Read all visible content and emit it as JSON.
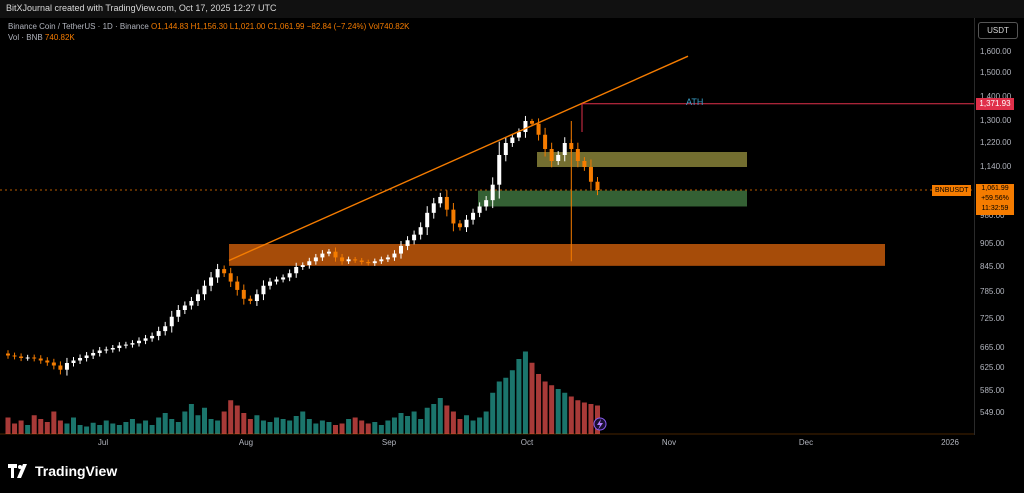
{
  "header": {
    "created_by": "BitXJournal created with TradingView.com, Oct 17, 2025 12:27 UTC"
  },
  "legend": {
    "symbol_line_prefix": "Binance Coin / TetherUS · 1D · Binance",
    "ohlc_text": "O1,144.83 H1,156.30 L1,021.00 C1,061.99 −82.84 (−7.24%) Vol740.82K",
    "vol_label": "Vol · BNB",
    "vol_value": "740.82K"
  },
  "price_axis": {
    "currency": "USDT",
    "ticks": [
      "1,600.00",
      "1,500.00",
      "1,400.00",
      "1,300.00",
      "1,220.00",
      "1,140.00",
      "980.00",
      "905.00",
      "845.00",
      "785.00",
      "725.00",
      "665.00",
      "625.00",
      "585.00",
      "549.00"
    ]
  },
  "time_axis": {
    "ticks": [
      "Jul",
      "Aug",
      "Sep",
      "Oct",
      "Nov",
      "Dec",
      "2026"
    ]
  },
  "labels": {
    "ath_text": "ATH",
    "ath_price": "1,371.93",
    "symbol_tag": "BNBUSDT",
    "current_price": "1,061.99",
    "change_pct": "+59.56%",
    "countdown": "11:32:59"
  },
  "branding": {
    "logo_text": "TradingView"
  },
  "colors": {
    "up": "#ffffff",
    "down": "#f57c00",
    "vol_up": "#26a69a",
    "vol_down": "#ef5350",
    "trendline": "#f57c00",
    "ath_line": "#e0304a",
    "zone_orange": "#b8540a",
    "zone_olive": "#807a35",
    "zone_green": "#3a6a3a"
  },
  "chart_data": {
    "type": "candlestick",
    "symbol": "BNBUSDT",
    "timeframe": "1D",
    "ylim": [
      520,
      1680
    ],
    "x": [
      "Jul",
      "Aug",
      "Sep",
      "Oct",
      "Nov",
      "Dec",
      "2026"
    ],
    "last": {
      "open": 1144.83,
      "high": 1156.3,
      "low": 1021.0,
      "close": 1061.99,
      "change": -82.84,
      "change_pct": -7.24,
      "volume": "740.82K"
    },
    "ath": 1371.93,
    "closes": [
      650,
      648,
      645,
      646,
      644,
      640,
      636,
      630,
      622,
      635,
      640,
      645,
      650,
      655,
      660,
      662,
      665,
      670,
      672,
      675,
      680,
      685,
      690,
      700,
      710,
      730,
      745,
      755,
      765,
      780,
      800,
      820,
      840,
      830,
      810,
      790,
      770,
      765,
      780,
      800,
      810,
      815,
      820,
      830,
      845,
      850,
      860,
      870,
      880,
      885,
      870,
      860,
      865,
      862,
      858,
      855,
      860,
      865,
      870,
      880,
      900,
      915,
      930,
      950,
      990,
      1020,
      1040,
      1000,
      960,
      950,
      970,
      990,
      1010,
      1030,
      1080,
      1180,
      1220,
      1240,
      1260,
      1300,
      1290,
      1250,
      1200,
      1160,
      1180,
      1220,
      1200,
      1160,
      1140,
      1090,
      1061.99
    ],
    "zones": [
      {
        "name": "orange",
        "low": 848,
        "high": 905
      },
      {
        "name": "olive",
        "low": 1140,
        "high": 1190
      },
      {
        "name": "green",
        "low": 1010,
        "high": 1060
      }
    ]
  }
}
